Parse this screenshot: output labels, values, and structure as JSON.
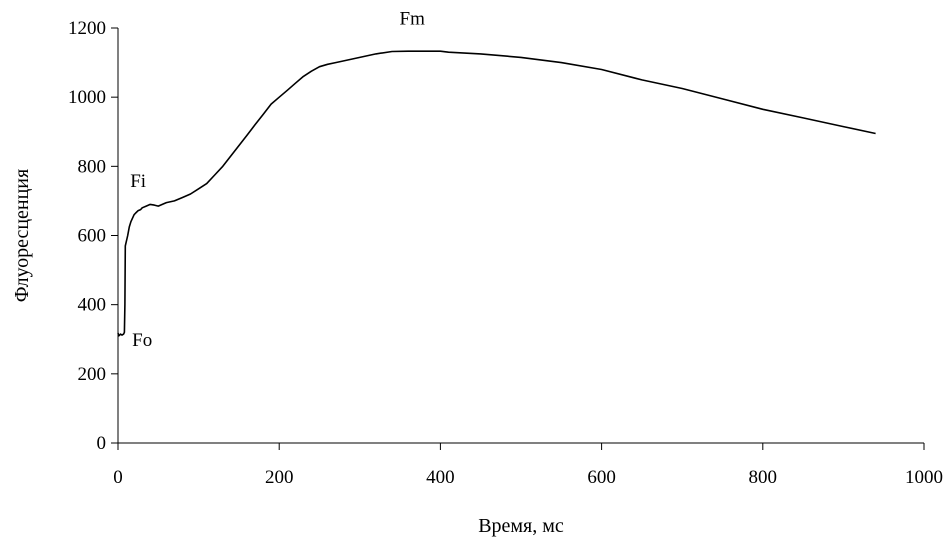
{
  "chart_data": {
    "type": "line",
    "xlabel": "Время, мс",
    "ylabel": "Флуоресценция",
    "xlim": [
      0,
      1000
    ],
    "ylim": [
      0,
      1200
    ],
    "x_ticks": [
      0,
      200,
      400,
      600,
      800,
      1000
    ],
    "y_ticks": [
      0,
      200,
      400,
      600,
      800,
      1000,
      1200
    ],
    "grid": false,
    "line_color": "#000000",
    "series": [
      {
        "x": [
          0,
          1,
          2,
          3,
          5,
          7,
          8,
          8.5,
          9,
          10,
          11,
          12,
          14,
          16,
          18,
          20,
          22,
          25,
          28,
          30,
          35,
          40,
          45,
          50,
          55,
          60,
          70,
          80,
          90,
          100,
          110,
          120,
          130,
          140,
          150,
          160,
          170,
          180,
          190,
          200,
          210,
          220,
          230,
          240,
          250,
          260,
          270,
          280,
          300,
          320,
          340,
          360,
          380,
          400,
          410,
          450,
          500,
          550,
          600,
          650,
          700,
          750,
          800,
          850,
          900,
          940
        ],
        "y": [
          318,
          310,
          312,
          315,
          312,
          315,
          320,
          400,
          570,
          580,
          590,
          600,
          625,
          640,
          650,
          660,
          665,
          672,
          675,
          680,
          685,
          690,
          688,
          685,
          690,
          695,
          700,
          710,
          720,
          735,
          750,
          775,
          800,
          830,
          860,
          890,
          920,
          950,
          980,
          1000,
          1020,
          1040,
          1060,
          1075,
          1088,
          1095,
          1100,
          1105,
          1115,
          1125,
          1132,
          1133,
          1133,
          1133,
          1130,
          1125,
          1115,
          1100,
          1080,
          1050,
          1025,
          995,
          965,
          940,
          915,
          895
        ]
      }
    ],
    "annotations": [
      {
        "text": "Fo",
        "x": 30,
        "y": 280
      },
      {
        "text": "Fi",
        "x": 25,
        "y": 740
      },
      {
        "text": "Fm",
        "x": 365,
        "y": 1210
      }
    ]
  }
}
